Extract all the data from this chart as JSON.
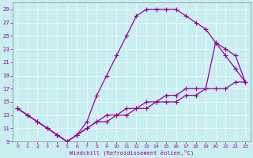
{
  "xlabel": "Windchill (Refroidissement éolien,°C)",
  "xlim": [
    -0.5,
    23.5
  ],
  "ylim": [
    9,
    30
  ],
  "xticks": [
    0,
    1,
    2,
    3,
    4,
    5,
    6,
    7,
    8,
    9,
    10,
    11,
    12,
    13,
    14,
    15,
    16,
    17,
    18,
    19,
    20,
    21,
    22,
    23
  ],
  "yticks": [
    9,
    11,
    13,
    15,
    17,
    19,
    21,
    23,
    25,
    27,
    29
  ],
  "bg_color": "#c8eef0",
  "grid_color": "#aadddd",
  "line_color": "#990099",
  "curve1_x": [
    0,
    1,
    2,
    3,
    4,
    5,
    6,
    7,
    8,
    9,
    10,
    11,
    12,
    13,
    14,
    15,
    16,
    17,
    18,
    19,
    20,
    21,
    22,
    23
  ],
  "curve1_y": [
    14,
    13,
    12,
    11,
    10,
    9,
    10,
    12,
    16,
    19,
    22,
    25,
    28,
    29,
    29,
    29,
    29,
    28,
    27,
    26,
    24,
    22,
    20,
    18
  ],
  "curve2_x": [
    0,
    1,
    2,
    3,
    4,
    5,
    6,
    7,
    8,
    9,
    10,
    11,
    12,
    13,
    14,
    15,
    16,
    17,
    18,
    19,
    20,
    21,
    22,
    23
  ],
  "curve2_y": [
    14,
    13,
    12,
    11,
    10,
    9,
    10,
    11,
    12,
    13,
    13,
    14,
    14,
    15,
    15,
    16,
    16,
    17,
    17,
    17,
    24,
    23,
    22,
    18
  ],
  "line3_x": [
    0,
    1,
    2,
    3,
    4,
    5,
    6,
    7,
    8,
    9,
    10,
    11,
    12,
    13,
    14,
    15,
    16,
    17,
    18,
    19,
    20,
    21,
    22,
    23
  ],
  "line3_y": [
    14,
    13,
    12,
    11,
    10,
    9,
    10,
    11,
    12,
    12,
    13,
    13,
    14,
    14,
    15,
    15,
    15,
    16,
    16,
    17,
    17,
    17,
    18,
    18
  ]
}
